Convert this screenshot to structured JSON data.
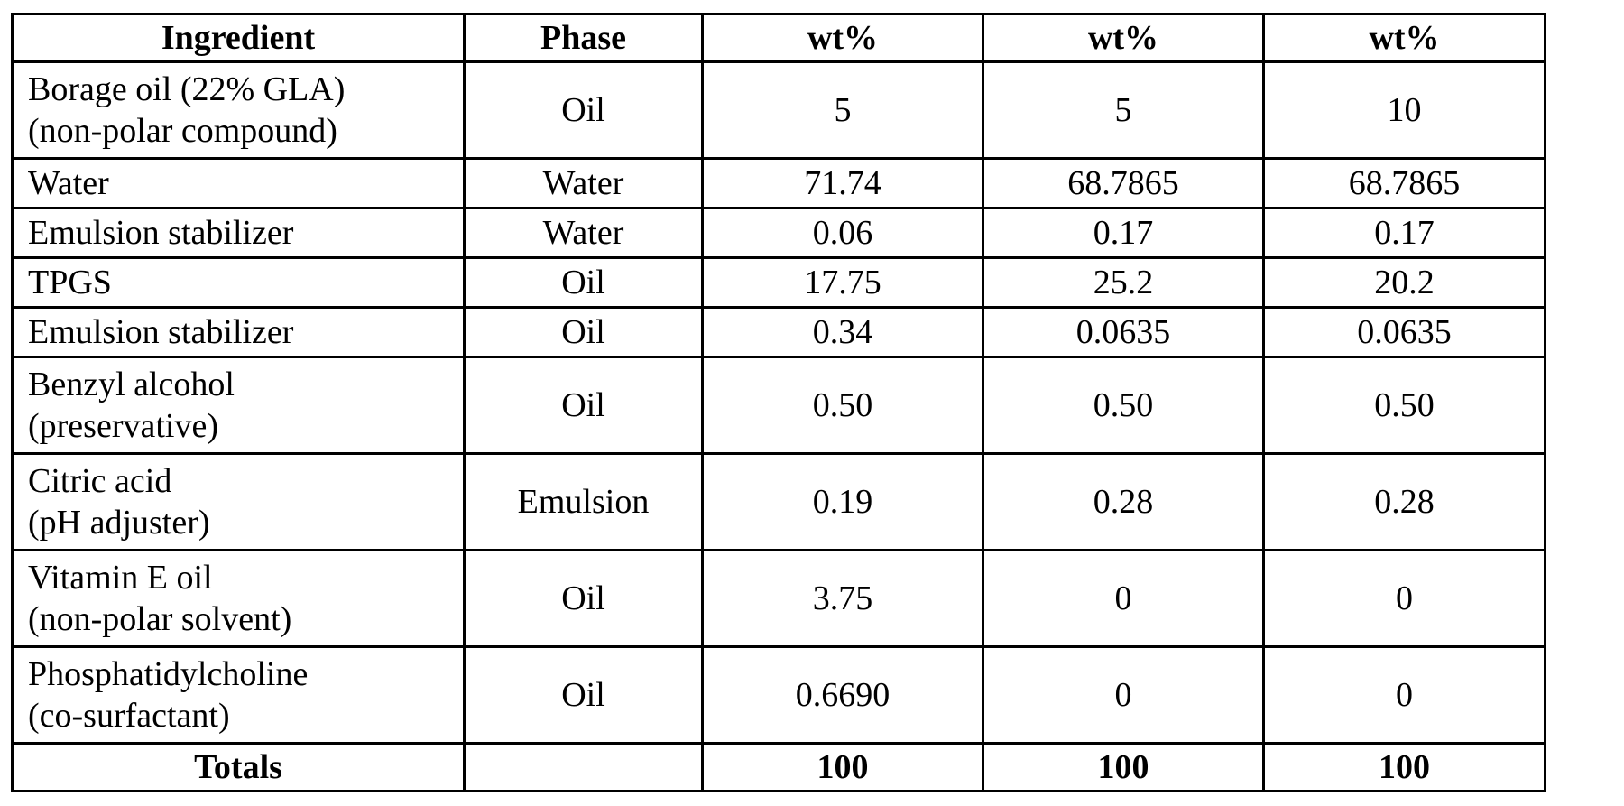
{
  "table": {
    "headers": [
      "Ingredient",
      "Phase",
      "wt%",
      "wt%",
      "wt%"
    ],
    "rows": [
      {
        "ingredient": [
          "Borage oil (22% GLA)",
          "(non-polar compound)"
        ],
        "phase": "Oil",
        "values": [
          "5",
          "5",
          "10"
        ]
      },
      {
        "ingredient": [
          "Water"
        ],
        "phase": "Water",
        "values": [
          "71.74",
          "68.7865",
          "68.7865"
        ]
      },
      {
        "ingredient": [
          "Emulsion stabilizer"
        ],
        "phase": "Water",
        "values": [
          "0.06",
          "0.17",
          "0.17"
        ]
      },
      {
        "ingredient": [
          "TPGS"
        ],
        "phase": "Oil",
        "values": [
          "17.75",
          "25.2",
          "20.2"
        ]
      },
      {
        "ingredient": [
          "Emulsion stabilizer"
        ],
        "phase": "Oil",
        "values": [
          "0.34",
          "0.0635",
          "0.0635"
        ]
      },
      {
        "ingredient": [
          "Benzyl alcohol",
          "(preservative)"
        ],
        "phase": "Oil",
        "values": [
          "0.50",
          "0.50",
          "0.50"
        ]
      },
      {
        "ingredient": [
          "Citric acid",
          "(pH adjuster)"
        ],
        "phase": "Emulsion",
        "values": [
          "0.19",
          "0.28",
          "0.28"
        ]
      },
      {
        "ingredient": [
          "Vitamin E oil",
          "(non-polar solvent)"
        ],
        "phase": "Oil",
        "values": [
          "3.75",
          "0",
          "0"
        ]
      },
      {
        "ingredient": [
          "Phosphatidylcholine",
          "(co-surfactant)"
        ],
        "phase": "Oil",
        "values": [
          "0.6690",
          "0",
          "0"
        ]
      }
    ],
    "totals": {
      "label": "Totals",
      "phase": "",
      "values": [
        "100",
        "100",
        "100"
      ]
    }
  }
}
